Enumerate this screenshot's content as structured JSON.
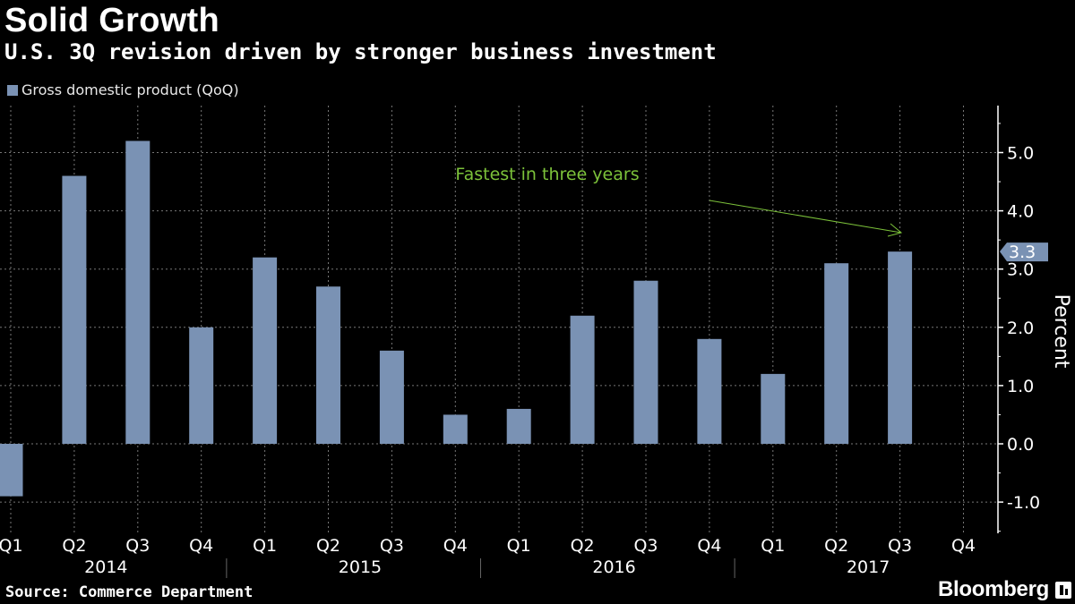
{
  "header": {
    "title": "Solid Growth",
    "subtitle": "U.S. 3Q revision driven by stronger business investment"
  },
  "legend": {
    "label": "Gross domestic product (QoQ)"
  },
  "footer": {
    "source": "Source: Commerce Department",
    "brand": "Bloomberg"
  },
  "colors": {
    "bar": "#7a92b4",
    "annotation": "#7cc23a",
    "grid": "#777777",
    "text": "#ffffff",
    "background": "#000000"
  },
  "chart_data": {
    "type": "bar",
    "categories": [
      "Q1",
      "Q2",
      "Q3",
      "Q4",
      "Q1",
      "Q2",
      "Q3",
      "Q4",
      "Q1",
      "Q2",
      "Q3",
      "Q4",
      "Q1",
      "Q2",
      "Q3",
      "Q4"
    ],
    "years": [
      "2014",
      "2015",
      "2016",
      "2017"
    ],
    "series": [
      {
        "name": "Gross domestic product (QoQ)",
        "values": [
          -0.9,
          4.6,
          5.2,
          2.0,
          3.2,
          2.7,
          1.6,
          0.5,
          0.6,
          2.2,
          2.8,
          1.8,
          1.2,
          3.1,
          3.3,
          null
        ]
      }
    ],
    "ylabel": "Percent",
    "ylim": [
      -1.5,
      5.8
    ],
    "yticks": [
      "-1.0",
      "0.0",
      "1.0",
      "2.0",
      "3.0",
      "4.0",
      "5.0"
    ],
    "ytick_values": [
      -1,
      0,
      1,
      2,
      3,
      4,
      5
    ],
    "last_value_label": "3.3",
    "last_value": 3.3,
    "annotation": {
      "text": "Fastest in three years"
    },
    "grid": true,
    "legend_position": "top-left"
  }
}
